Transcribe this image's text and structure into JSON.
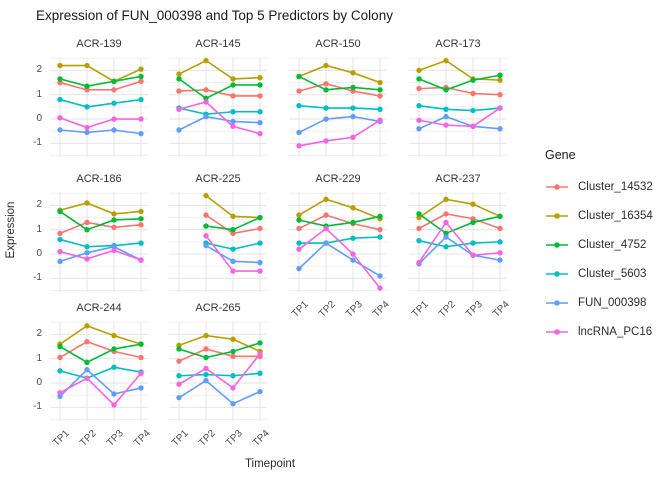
{
  "title": "Expression of FUN_000398 and Top 5 Predictors by Colony",
  "legend": {
    "title": "Gene"
  },
  "chart_data": {
    "type": "line",
    "title": "Expression of FUN_000398 and Top 5 Predictors by Colony",
    "xlabel": "Timepoint",
    "ylabel": "Expression",
    "categories": [
      "TP1",
      "TP2",
      "TP3",
      "TP4"
    ],
    "yticks": [
      2,
      1,
      0,
      -1
    ],
    "ylim": [
      -1.56,
      2.55
    ],
    "grid": "on",
    "legend_position": "right",
    "legend_title": "Gene",
    "series_meta": [
      {
        "name": "Cluster_14532",
        "color": "#F8766D"
      },
      {
        "name": "Cluster_16354",
        "color": "#B79F00"
      },
      {
        "name": "Cluster_4752",
        "color": "#00BA38"
      },
      {
        "name": "Cluster_5603",
        "color": "#00BFC4"
      },
      {
        "name": "FUN_000398",
        "color": "#619CFF"
      },
      {
        "name": "lncRNA_PC16",
        "color": "#F564E3"
      }
    ],
    "facets": [
      {
        "name": "ACR-139",
        "series": [
          [
            1.5,
            1.2,
            1.2,
            1.55
          ],
          [
            2.2,
            2.2,
            1.55,
            2.05
          ],
          [
            1.65,
            1.35,
            1.55,
            1.75
          ],
          [
            0.8,
            0.5,
            0.65,
            0.8
          ],
          [
            -0.45,
            -0.55,
            -0.45,
            -0.6
          ],
          [
            0.05,
            -0.35,
            0.0,
            0.0
          ]
        ]
      },
      {
        "name": "ACR-145",
        "series": [
          [
            1.15,
            1.2,
            0.95,
            0.95
          ],
          [
            1.85,
            2.4,
            1.65,
            1.7
          ],
          [
            1.65,
            0.85,
            1.4,
            1.4
          ],
          [
            0.45,
            0.2,
            0.3,
            0.3
          ],
          [
            -0.45,
            0.1,
            -0.1,
            -0.15
          ],
          [
            0.4,
            0.7,
            -0.3,
            -0.6
          ]
        ]
      },
      {
        "name": "ACR-150",
        "series": [
          [
            1.15,
            1.45,
            1.15,
            0.95
          ],
          [
            1.75,
            2.2,
            1.9,
            1.5
          ],
          [
            1.75,
            1.2,
            1.3,
            1.2
          ],
          [
            0.55,
            0.45,
            0.45,
            0.4
          ],
          [
            -0.55,
            0.0,
            0.1,
            -0.1
          ],
          [
            -1.1,
            -0.9,
            -0.75,
            -0.05
          ]
        ]
      },
      {
        "name": "ACR-173",
        "series": [
          [
            1.25,
            1.3,
            1.05,
            1.0
          ],
          [
            2.0,
            2.4,
            1.65,
            1.6
          ],
          [
            1.65,
            1.2,
            1.6,
            1.8
          ],
          [
            0.55,
            0.4,
            0.35,
            0.45
          ],
          [
            -0.4,
            0.1,
            -0.3,
            -0.4
          ],
          [
            -0.05,
            -0.25,
            -0.3,
            0.45
          ]
        ]
      },
      {
        "name": "ACR-186",
        "series": [
          [
            0.85,
            1.3,
            1.1,
            1.2
          ],
          [
            1.8,
            2.1,
            1.65,
            1.75
          ],
          [
            1.75,
            1.0,
            1.4,
            1.45
          ],
          [
            0.6,
            0.3,
            0.35,
            0.45
          ],
          [
            -0.3,
            0.05,
            0.3,
            -0.25
          ],
          [
            0.1,
            -0.2,
            0.15,
            -0.25
          ]
        ]
      },
      {
        "name": "ACR-225",
        "series": [
          [
            null,
            1.6,
            0.85,
            1.05
          ],
          [
            null,
            2.4,
            1.55,
            1.5
          ],
          [
            null,
            1.15,
            1.0,
            1.5
          ],
          [
            null,
            0.45,
            0.2,
            0.45
          ],
          [
            null,
            0.35,
            -0.3,
            -0.35
          ],
          [
            null,
            0.75,
            -0.7,
            -0.7
          ]
        ]
      },
      {
        "name": "ACR-229",
        "series": [
          [
            1.05,
            1.6,
            1.25,
            1.0
          ],
          [
            1.6,
            2.25,
            1.9,
            1.45
          ],
          [
            1.4,
            1.15,
            1.3,
            1.55
          ],
          [
            0.45,
            0.45,
            0.65,
            0.7
          ],
          [
            -0.6,
            0.45,
            -0.25,
            -0.9
          ],
          [
            0.2,
            1.05,
            0.0,
            -1.4
          ]
        ]
      },
      {
        "name": "ACR-237",
        "series": [
          [
            1.05,
            1.65,
            1.45,
            1.05
          ],
          [
            1.5,
            2.25,
            2.05,
            1.55
          ],
          [
            1.65,
            0.85,
            1.3,
            1.55
          ],
          [
            0.55,
            0.3,
            0.45,
            0.5
          ],
          [
            -0.4,
            0.7,
            -0.05,
            -0.25
          ],
          [
            -0.35,
            1.3,
            -0.05,
            0.05
          ]
        ]
      },
      {
        "name": "ACR-244",
        "series": [
          [
            1.05,
            1.7,
            1.3,
            1.05
          ],
          [
            1.6,
            2.35,
            1.95,
            1.6
          ],
          [
            1.5,
            0.85,
            1.4,
            1.6
          ],
          [
            0.5,
            0.2,
            0.65,
            0.45
          ],
          [
            -0.55,
            0.55,
            -0.45,
            -0.2
          ],
          [
            -0.4,
            0.2,
            -0.9,
            0.4
          ]
        ]
      },
      {
        "name": "ACR-265",
        "series": [
          [
            0.9,
            1.4,
            1.1,
            1.1
          ],
          [
            1.55,
            1.95,
            1.8,
            1.3
          ],
          [
            1.4,
            1.05,
            1.3,
            1.65
          ],
          [
            0.3,
            0.35,
            0.3,
            0.4
          ],
          [
            -0.6,
            0.1,
            -0.85,
            -0.35
          ],
          [
            -0.05,
            0.6,
            -0.2,
            1.2
          ]
        ]
      }
    ],
    "colors": {
      "grid_major": "#e4e4e4",
      "grid_minor": "#f0f0f0",
      "background": "#ffffff"
    }
  }
}
